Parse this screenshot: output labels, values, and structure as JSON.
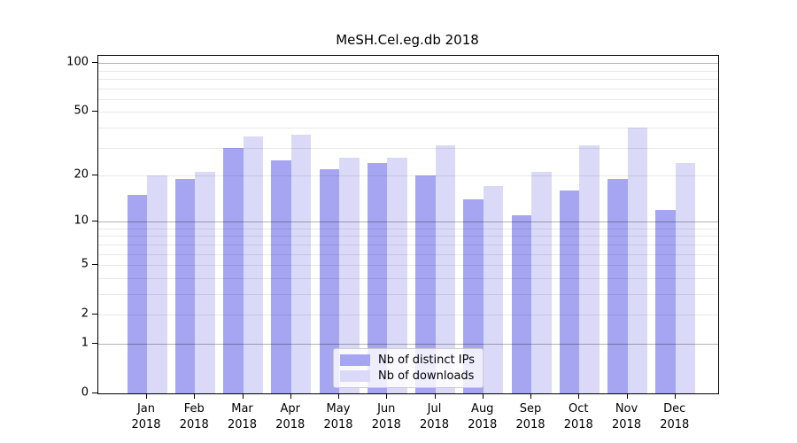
{
  "chart_data": {
    "type": "bar",
    "title": "MeSH.Cel.eg.db 2018",
    "categories": [
      "Jan 2018",
      "Feb 2018",
      "Mar 2018",
      "Apr 2018",
      "May 2018",
      "Jun 2018",
      "Jul 2018",
      "Aug 2018",
      "Sep 2018",
      "Oct 2018",
      "Nov 2018",
      "Dec 2018"
    ],
    "series": [
      {
        "name": "Nb of distinct IPs",
        "color": "#a5a5f2",
        "values": [
          15,
          19,
          30,
          25,
          22,
          24,
          20,
          14,
          11,
          16,
          19,
          12
        ]
      },
      {
        "name": "Nb of downloads",
        "color": "#dadaf8",
        "values": [
          20,
          21,
          35,
          36,
          26,
          26,
          31,
          17,
          21,
          31,
          40,
          24
        ]
      }
    ],
    "y_axis": {
      "scale": "log1p",
      "tick_labels": [
        100,
        50,
        20,
        10,
        5,
        2,
        1,
        0
      ],
      "major_gridlines": [
        1,
        10,
        100
      ],
      "minor_gridlines": [
        2,
        3,
        4,
        5,
        6,
        7,
        8,
        9,
        20,
        30,
        40,
        50,
        60,
        70,
        80,
        90
      ],
      "range_top": 110
    },
    "legend": {
      "position": "lower center"
    },
    "grid": true
  },
  "colors": {
    "background": "#ffffff",
    "frame": "#000000",
    "major_grid": "#b3b3b3",
    "minor_grid": "#e8e8e8",
    "distinct_ips": "#a5a5f2",
    "downloads": "#dadaf8"
  }
}
